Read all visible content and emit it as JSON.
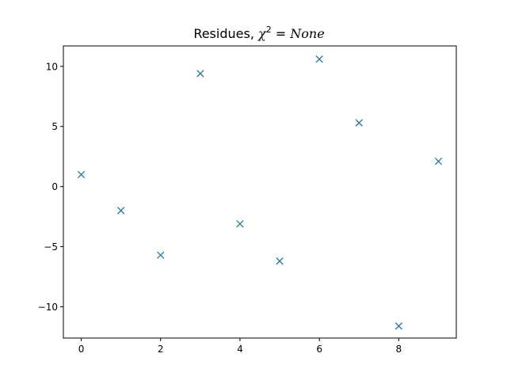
{
  "chart_data": {
    "type": "scatter",
    "title": {
      "prefix": "Residues, ",
      "symbol": "χ",
      "exponent": "2",
      "equals": " = ",
      "value": "None"
    },
    "xlabel": "",
    "ylabel": "",
    "xlim": [
      -0.45,
      9.45
    ],
    "ylim": [
      -12.6,
      11.7
    ],
    "xticks": [
      0,
      2,
      4,
      6,
      8
    ],
    "yticks": [
      10,
      5,
      0,
      -5,
      -10
    ],
    "ytick_labels": [
      "10",
      "5",
      "0",
      "−5",
      "−10"
    ],
    "grid": false,
    "marker": "x",
    "color": "#1f77b4",
    "points": {
      "x": [
        0,
        1,
        2,
        3,
        4,
        5,
        6,
        7,
        8,
        9
      ],
      "y": [
        1.0,
        -2.0,
        -5.7,
        9.4,
        -3.1,
        -6.2,
        10.6,
        5.3,
        -11.6,
        2.1
      ]
    }
  }
}
